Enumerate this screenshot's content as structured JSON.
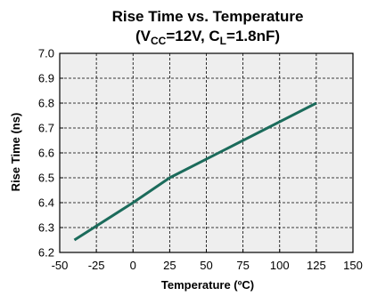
{
  "colors": {
    "background": "#ffffff",
    "plot_background": "#eeeeee",
    "grid": "#000000",
    "series": "#1b6b5b"
  },
  "chart_data": {
    "type": "line",
    "title_line1": "Rise Time vs. Temperature",
    "title_line2_parts": [
      "(V",
      "CC",
      "=12V, C",
      "L",
      "=1.8nF)"
    ],
    "xlabel": "Temperature (ºC)",
    "ylabel": "Rise Time (ns)",
    "xlim": [
      -50,
      150
    ],
    "ylim": [
      6.2,
      7.0
    ],
    "xticks": [
      -50,
      -25,
      0,
      25,
      50,
      75,
      100,
      125,
      150
    ],
    "xtick_labels": [
      "-50",
      "-25",
      "0",
      "25",
      "50",
      "75",
      "100",
      "125",
      "150"
    ],
    "yticks": [
      6.2,
      6.3,
      6.4,
      6.5,
      6.6,
      6.7,
      6.8,
      6.9,
      7.0
    ],
    "ytick_labels": [
      "6.2",
      "6.3",
      "6.4",
      "6.5",
      "6.6",
      "6.7",
      "6.8",
      "6.9",
      "7.0"
    ],
    "grid": true,
    "series": [
      {
        "x": [
          -40,
          0,
          25,
          75,
          125
        ],
        "y": [
          6.25,
          6.4,
          6.5,
          6.65,
          6.8
        ]
      }
    ]
  }
}
